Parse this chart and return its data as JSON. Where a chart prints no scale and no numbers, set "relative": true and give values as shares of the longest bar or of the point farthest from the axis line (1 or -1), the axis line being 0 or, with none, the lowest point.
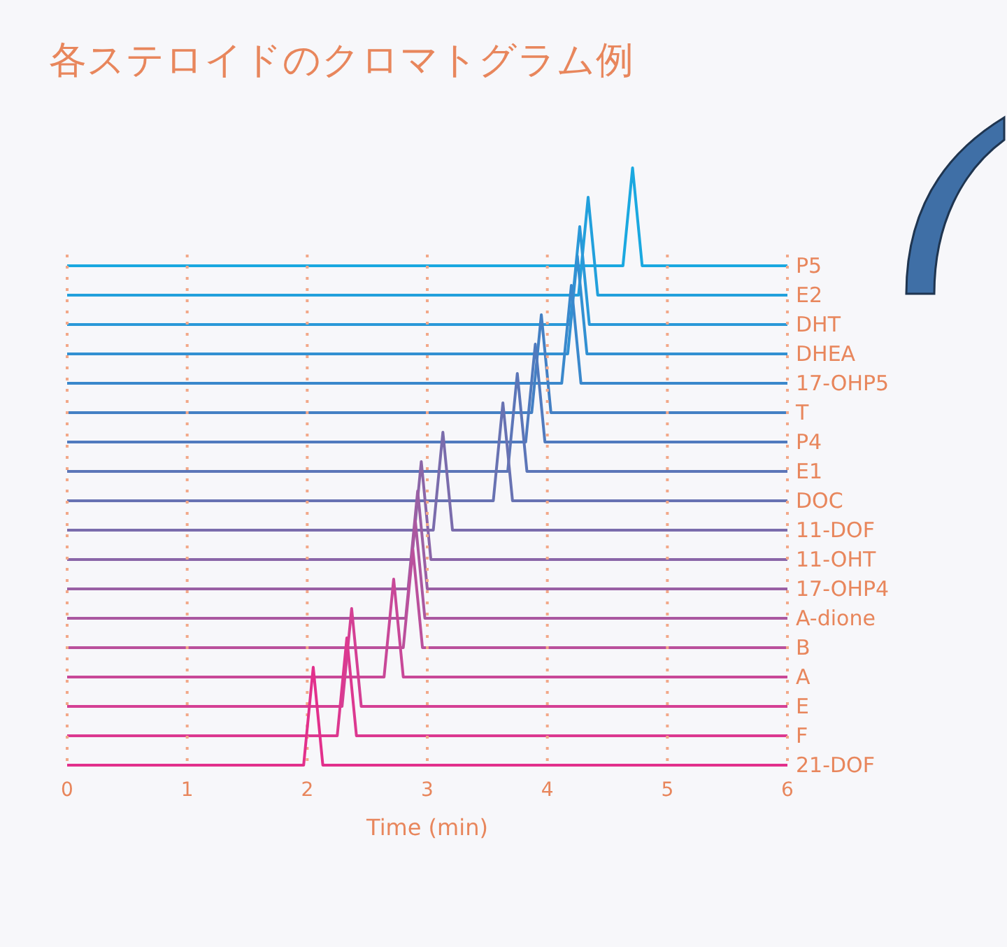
{
  "chart_data": [
    {
      "type": "line",
      "title": "各ステロイドのクロマトグラム例",
      "xlim": [
        0,
        6
      ],
      "relative": true,
      "tick_labels": false,
      "series": [
        {
          "name": "P5",
          "color": "#1aa8e0",
          "x": [
            0,
            4.63,
            4.71,
            4.79,
            6
          ],
          "values": [
            0,
            0,
            1,
            0,
            0
          ]
        }
      ]
    },
    {
      "type": "line",
      "xlim": [
        0,
        6
      ],
      "relative": true,
      "tick_labels": false,
      "series": [
        {
          "name": "E2",
          "color": "#22a0dc",
          "x": [
            0,
            4.26,
            4.34,
            4.42,
            6
          ],
          "values": [
            0,
            0,
            1,
            0,
            0
          ]
        }
      ]
    },
    {
      "type": "line",
      "xlim": [
        0,
        6
      ],
      "relative": true,
      "tick_labels": false,
      "series": [
        {
          "name": "DHT",
          "color": "#2a98d8",
          "x": [
            0,
            4.19,
            4.27,
            4.35,
            6
          ],
          "values": [
            0,
            0,
            1,
            0,
            0
          ]
        }
      ]
    },
    {
      "type": "line",
      "xlim": [
        0,
        6
      ],
      "relative": true,
      "tick_labels": false,
      "series": [
        {
          "name": "DHEA",
          "color": "#3290d2",
          "x": [
            0,
            4.17,
            4.25,
            4.33,
            6
          ],
          "values": [
            0,
            0,
            1,
            0,
            0
          ]
        }
      ]
    },
    {
      "type": "line",
      "xlim": [
        0,
        6
      ],
      "relative": true,
      "tick_labels": false,
      "series": [
        {
          "name": "17-OHP5",
          "color": "#3a88cc",
          "x": [
            0,
            4.12,
            4.2,
            4.28,
            6
          ],
          "values": [
            0,
            0,
            1,
            0,
            0
          ]
        }
      ]
    },
    {
      "type": "line",
      "xlim": [
        0,
        6
      ],
      "relative": true,
      "tick_labels": false,
      "series": [
        {
          "name": "T",
          "color": "#4480c4",
          "x": [
            0,
            3.87,
            3.95,
            4.03,
            6
          ],
          "values": [
            0,
            0,
            1,
            0,
            0
          ]
        }
      ]
    },
    {
      "type": "line",
      "xlim": [
        0,
        6
      ],
      "relative": true,
      "tick_labels": false,
      "series": [
        {
          "name": "P4",
          "color": "#507abe",
          "x": [
            0,
            3.82,
            3.9,
            3.98,
            6
          ],
          "values": [
            0,
            0,
            1,
            0,
            0
          ]
        }
      ]
    },
    {
      "type": "line",
      "xlim": [
        0,
        6
      ],
      "relative": true,
      "tick_labels": false,
      "series": [
        {
          "name": "E1",
          "color": "#5c76b8",
          "x": [
            0,
            3.67,
            3.75,
            3.83,
            6
          ],
          "values": [
            0,
            0,
            1,
            0,
            0
          ]
        }
      ]
    },
    {
      "type": "line",
      "xlim": [
        0,
        6
      ],
      "relative": true,
      "tick_labels": false,
      "series": [
        {
          "name": "DOC",
          "color": "#6872b2",
          "x": [
            0,
            3.55,
            3.63,
            3.71,
            6
          ],
          "values": [
            0,
            0,
            1,
            0,
            0
          ]
        }
      ]
    },
    {
      "type": "line",
      "xlim": [
        0,
        6
      ],
      "relative": true,
      "tick_labels": false,
      "series": [
        {
          "name": "11-DOF",
          "color": "#7a6cac",
          "x": [
            0,
            3.05,
            3.13,
            3.21,
            6
          ],
          "values": [
            0,
            0,
            1,
            0,
            0
          ]
        }
      ]
    },
    {
      "type": "line",
      "xlim": [
        0,
        6
      ],
      "relative": true,
      "tick_labels": false,
      "series": [
        {
          "name": "11-OHT",
          "color": "#8a66a8",
          "x": [
            0,
            2.87,
            2.95,
            3.03,
            6
          ],
          "values": [
            0,
            0,
            1,
            0,
            0
          ]
        }
      ]
    },
    {
      "type": "line",
      "xlim": [
        0,
        6
      ],
      "relative": true,
      "tick_labels": false,
      "series": [
        {
          "name": "17-OHP4",
          "color": "#9a60a4",
          "x": [
            0,
            2.84,
            2.92,
            3.0,
            6
          ],
          "values": [
            0,
            0,
            1,
            0,
            0
          ]
        }
      ]
    },
    {
      "type": "line",
      "xlim": [
        0,
        6
      ],
      "relative": true,
      "tick_labels": false,
      "series": [
        {
          "name": "A-dione",
          "color": "#aa58a0",
          "x": [
            0,
            2.82,
            2.9,
            2.98,
            6
          ],
          "values": [
            0,
            0,
            1,
            0,
            0
          ]
        }
      ]
    },
    {
      "type": "line",
      "xlim": [
        0,
        6
      ],
      "relative": true,
      "tick_labels": false,
      "series": [
        {
          "name": "B",
          "color": "#ba509c",
          "x": [
            0,
            2.8,
            2.88,
            2.96,
            6
          ],
          "values": [
            0,
            0,
            1,
            0,
            0
          ]
        }
      ]
    },
    {
      "type": "line",
      "xlim": [
        0,
        6
      ],
      "relative": true,
      "tick_labels": false,
      "series": [
        {
          "name": "A",
          "color": "#c84898",
          "x": [
            0,
            2.64,
            2.72,
            2.8,
            6
          ],
          "values": [
            0,
            0,
            1,
            0,
            0
          ]
        }
      ]
    },
    {
      "type": "line",
      "xlim": [
        0,
        6
      ],
      "relative": true,
      "tick_labels": false,
      "series": [
        {
          "name": "E",
          "color": "#d44094",
          "x": [
            0,
            2.29,
            2.37,
            2.45,
            6
          ],
          "values": [
            0,
            0,
            1,
            0,
            0
          ]
        }
      ]
    },
    {
      "type": "line",
      "xlim": [
        0,
        6
      ],
      "relative": true,
      "tick_labels": false,
      "series": [
        {
          "name": "F",
          "color": "#dc3890",
          "x": [
            0,
            2.25,
            2.33,
            2.41,
            6
          ],
          "values": [
            0,
            0,
            1,
            0,
            0
          ]
        }
      ]
    },
    {
      "type": "line",
      "xlabel": "Time (min)",
      "xlim": [
        0,
        6
      ],
      "xticks": [
        0,
        1,
        2,
        3,
        4,
        5,
        6
      ],
      "relative": true,
      "tick_labels": "x",
      "grid": "x",
      "series": [
        {
          "name": "21-DOF",
          "color": "#e2308c",
          "x": [
            0,
            1.97,
            2.05,
            2.13,
            6
          ],
          "values": [
            0,
            0,
            1,
            0,
            0
          ]
        }
      ]
    }
  ]
}
